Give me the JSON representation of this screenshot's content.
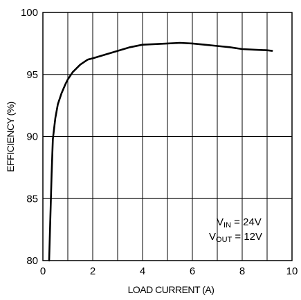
{
  "chart_data": {
    "type": "line",
    "title": "",
    "xlabel": "LOAD CURRENT (A)",
    "ylabel": "EFFICIENCY (%)",
    "xlim": [
      0,
      10
    ],
    "ylim": [
      80,
      100
    ],
    "x_ticks": [
      0,
      2,
      4,
      6,
      8,
      10
    ],
    "y_ticks": [
      80,
      85,
      90,
      95,
      100
    ],
    "x_tick_labels": [
      "0",
      "2",
      "4",
      "6",
      "8",
      "10"
    ],
    "y_tick_labels": [
      "80",
      "85",
      "90",
      "95",
      "100"
    ],
    "grid": true,
    "grid_x_step": 1,
    "grid_y_step": 5,
    "legend": "none",
    "line_color": "#000000",
    "grid_color": "#000000",
    "series": [
      {
        "x": [
          0.25,
          0.3,
          0.35,
          0.4,
          0.5,
          0.6,
          0.75,
          0.9,
          1.0,
          1.2,
          1.5,
          1.8,
          2.0,
          2.5,
          3.0,
          3.5,
          4.0,
          4.5,
          5.0,
          5.5,
          6.0,
          6.5,
          7.0,
          7.5,
          8.0,
          8.5,
          9.0,
          9.2
        ],
        "y": [
          80.0,
          83.5,
          87.0,
          89.8,
          91.5,
          92.6,
          93.5,
          94.2,
          94.6,
          95.2,
          95.8,
          96.2,
          96.3,
          96.6,
          96.9,
          97.2,
          97.4,
          97.45,
          97.5,
          97.55,
          97.5,
          97.4,
          97.3,
          97.2,
          97.05,
          97.0,
          96.95,
          96.9
        ]
      }
    ],
    "annotation": {
      "line1_main": "V",
      "line1_sub": "IN",
      "line1_rest": " = 24V",
      "line2_main": "V",
      "line2_sub": "OUT",
      "line2_rest": " = 12V"
    }
  }
}
